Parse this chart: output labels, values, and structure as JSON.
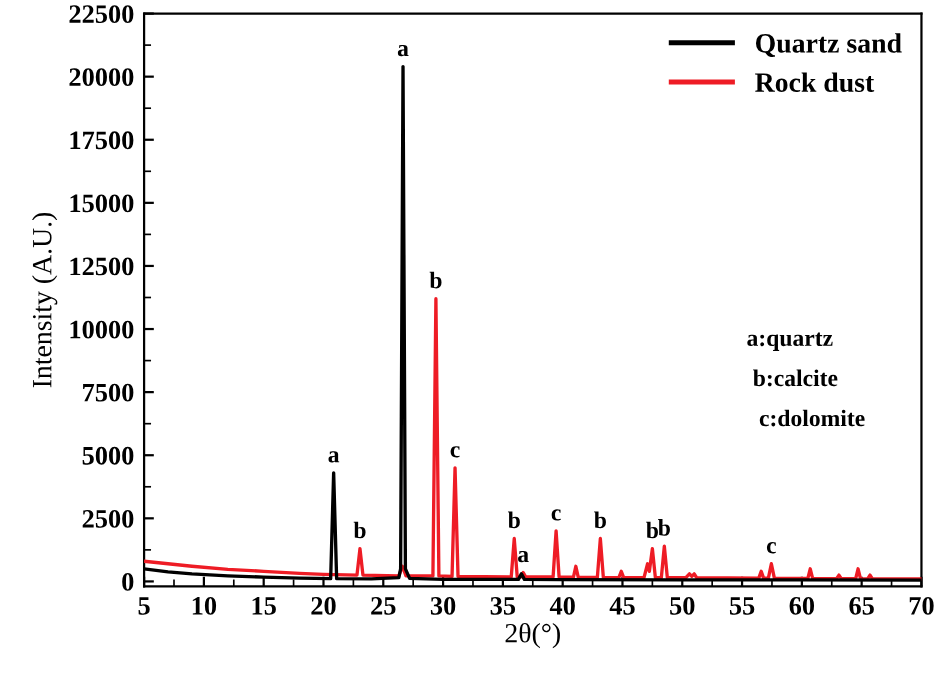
{
  "chart_data": {
    "type": "line",
    "xlabel": "2θ(°)",
    "ylabel": "Intensity (A.U.)",
    "xlim": [
      5,
      70
    ],
    "xticks": [
      5,
      10,
      15,
      20,
      25,
      30,
      35,
      40,
      45,
      50,
      55,
      60,
      65,
      70
    ],
    "ylim": [
      -200,
      22500
    ],
    "yticks": [
      0,
      2500,
      5000,
      7500,
      10000,
      12500,
      15000,
      17500,
      20000,
      22500
    ],
    "legend": "top right",
    "grid": false,
    "marker": "none",
    "line_style": "solid",
    "series": [
      {
        "name": "Quartz sand",
        "color": "#000000",
        "x": [
          5,
          7,
          9,
          12,
          15,
          18,
          20.6,
          20.85,
          21.1,
          24,
          26.3,
          26.45,
          26.65,
          26.85,
          27.2,
          30,
          36.3,
          36.55,
          36.8,
          40,
          50,
          60,
          70
        ],
        "values": [
          500,
          380,
          300,
          220,
          170,
          130,
          110,
          4300,
          110,
          100,
          150,
          500,
          20400,
          500,
          120,
          80,
          80,
          300,
          80,
          70,
          60,
          60,
          50
        ]
      },
      {
        "name": "Rock dust",
        "color": "#ee1c25",
        "x": [
          5,
          7,
          9,
          12,
          15,
          18,
          20,
          22.8,
          23.05,
          23.3,
          26.3,
          26.6,
          26.9,
          29.15,
          29.4,
          29.65,
          30.75,
          31.0,
          31.25,
          35.7,
          35.95,
          36.2,
          36.5,
          36.7,
          36.9,
          39.2,
          39.45,
          39.7,
          40.9,
          41.1,
          41.3,
          42.9,
          43.15,
          43.4,
          44.7,
          44.9,
          45.1,
          46.8,
          47.1,
          47.25,
          47.5,
          47.75,
          48.25,
          48.5,
          48.75,
          50.3,
          50.6,
          50.8,
          51.0,
          51.2,
          56.4,
          56.6,
          56.8,
          57.2,
          57.45,
          57.7,
          60.5,
          60.7,
          60.9,
          62.9,
          63.1,
          63.3,
          64.5,
          64.7,
          64.9,
          65.5,
          65.7,
          65.9,
          68,
          70
        ],
        "values": [
          800,
          700,
          600,
          480,
          400,
          320,
          280,
          250,
          1300,
          250,
          220,
          600,
          220,
          220,
          11200,
          220,
          200,
          4500,
          200,
          180,
          1700,
          180,
          180,
          350,
          180,
          180,
          2000,
          180,
          170,
          600,
          170,
          160,
          1700,
          160,
          150,
          400,
          150,
          150,
          700,
          400,
          1300,
          150,
          150,
          1400,
          150,
          150,
          300,
          200,
          300,
          150,
          130,
          400,
          130,
          130,
          700,
          130,
          120,
          500,
          120,
          110,
          250,
          110,
          110,
          500,
          110,
          100,
          250,
          100,
          100,
          100
        ]
      }
    ],
    "annotations": [
      {
        "text": "a",
        "x": 20.85,
        "y": 4300
      },
      {
        "text": "a",
        "x": 26.65,
        "y": 20400
      },
      {
        "text": "b",
        "x": 23.05,
        "y": 1300
      },
      {
        "text": "b",
        "x": 29.4,
        "y": 11200
      },
      {
        "text": "c",
        "x": 31.0,
        "y": 4500
      },
      {
        "text": "b",
        "x": 35.95,
        "y": 1700
      },
      {
        "text": "a",
        "x": 36.7,
        "y": 350
      },
      {
        "text": "c",
        "x": 39.45,
        "y": 2000
      },
      {
        "text": "b",
        "x": 43.15,
        "y": 1700
      },
      {
        "text": "b",
        "x": 47.5,
        "y": 1300
      },
      {
        "text": "b",
        "x": 48.5,
        "y": 1400
      },
      {
        "text": "c",
        "x": 57.45,
        "y": 700
      },
      "a:quartz",
      "b:calcite",
      "c:dolomite"
    ]
  }
}
